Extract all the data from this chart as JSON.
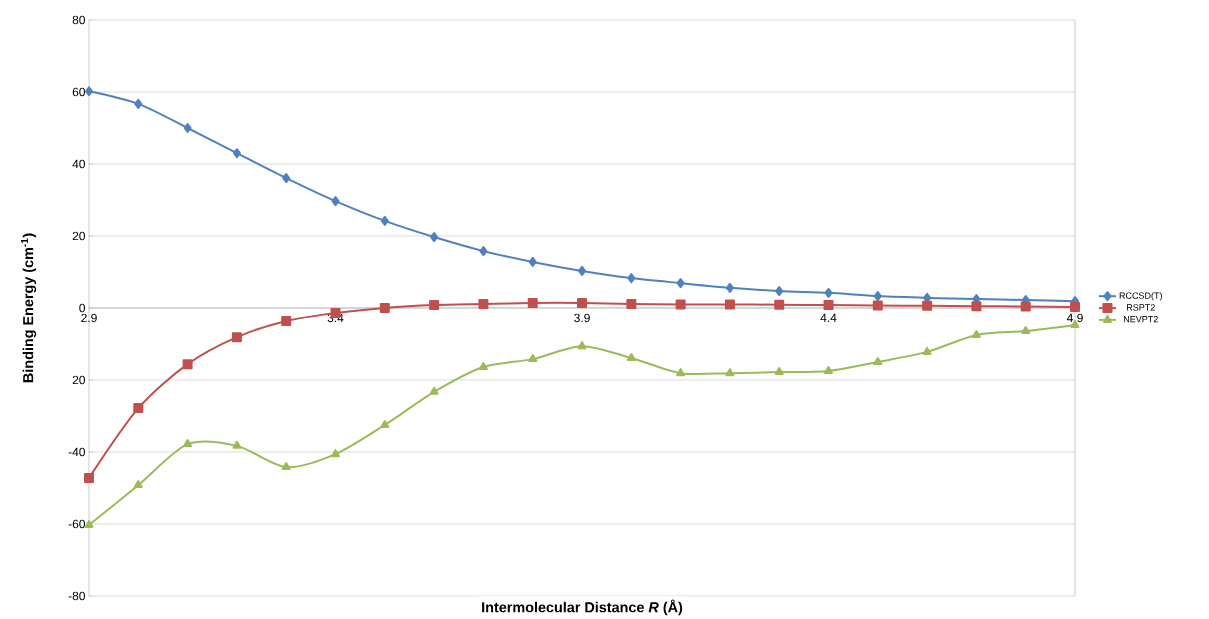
{
  "chart_data": {
    "type": "line",
    "xlabel": "Intermolecular Distance *R* (Å)",
    "ylabel": "Binding Energy (cm$^{-1}$)",
    "x": [
      2.9,
      3.0,
      3.1,
      3.2,
      3.3,
      3.4,
      3.5,
      3.6,
      3.7,
      3.8,
      3.9,
      4.0,
      4.1,
      4.2,
      4.3,
      4.4,
      4.5,
      4.6,
      4.7,
      4.8,
      4.9
    ],
    "series": [
      {
        "name": "RCCSD(T)",
        "color": "#4f81bd",
        "marker": "diamond",
        "values": [
          60.2,
          56.7,
          50,
          43,
          36.1,
          29.7,
          24.2,
          19.7,
          15.8,
          12.8,
          10.3,
          8.3,
          6.9,
          5.6,
          4.7,
          4.2,
          3.3,
          2.8,
          2.5,
          2.2,
          1.9
        ]
      },
      {
        "name": "RSPT2",
        "color": "#c0504d",
        "marker": "square",
        "values": [
          -47.2,
          -27.8,
          -15.6,
          -8.1,
          -3.6,
          -1.4,
          0,
          0.8,
          1.1,
          1.4,
          1.4,
          1.1,
          1.0,
          1.0,
          0.9,
          0.8,
          0.7,
          0.6,
          0.5,
          0.4,
          0.3
        ]
      },
      {
        "name": "NEVPT2",
        "color": "#9bbb59",
        "marker": "triangle",
        "values": [
          -60.3,
          -49.2,
          -37.8,
          -38.3,
          -44.2,
          -40.6,
          -32.5,
          -23.3,
          -16.4,
          -14.2,
          -10.6,
          -13.9,
          -18.1,
          -18.1,
          -17.8,
          -17.5,
          -15,
          -12.2,
          -7.5,
          -6.4,
          -4.7
        ]
      }
    ],
    "xlim": [
      2.9,
      4.9
    ],
    "xticks": [
      2.9,
      3.4,
      3.9,
      4.4,
      4.9
    ],
    "ylim": [
      -80,
      80
    ],
    "yticks": [
      80,
      60,
      40,
      20,
      0,
      {
        "value": -20,
        "label": "20"
      },
      -40,
      -60,
      -80
    ],
    "grid": "y",
    "legend": "right",
    "line_style": "solid"
  }
}
